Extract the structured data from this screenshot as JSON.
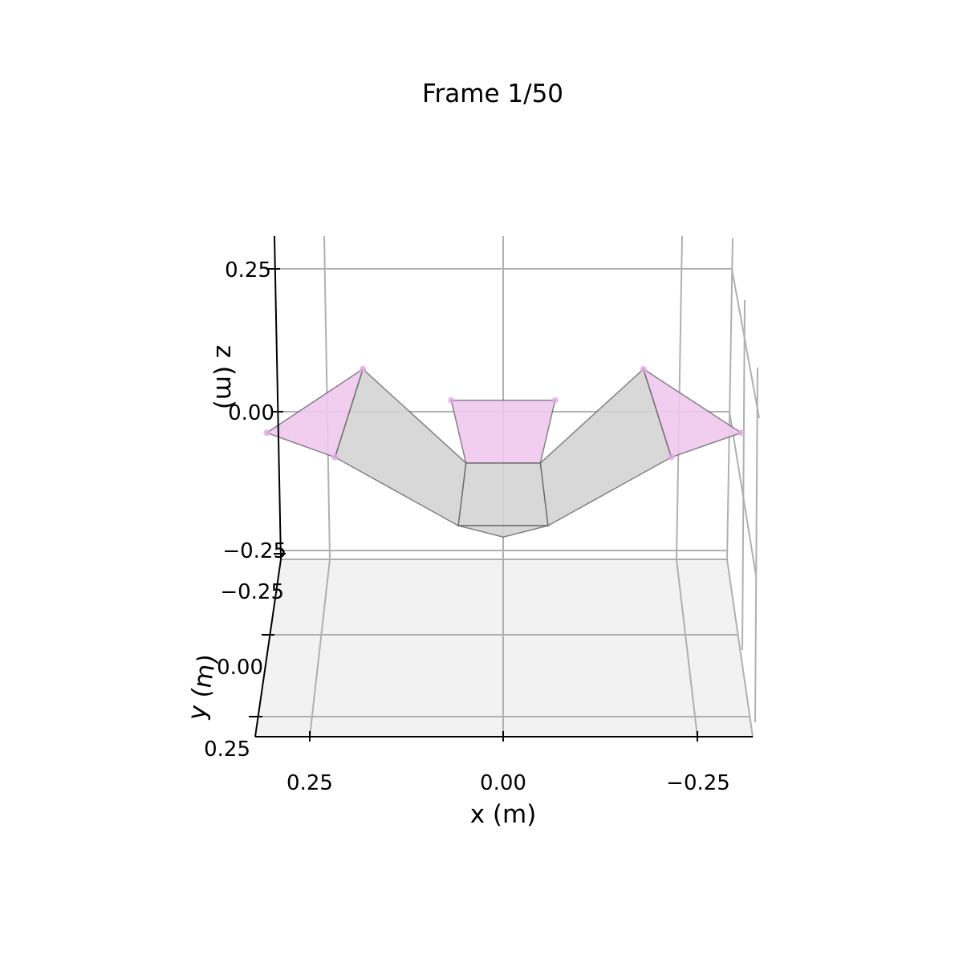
{
  "chart_data": {
    "type": "3d-surface",
    "title": "Frame 1/50",
    "xlabel": "x (m)",
    "ylabel": "y (m)",
    "zlabel": "z (m)",
    "x_ticks": [
      "0.25",
      "0.00",
      "−0.25"
    ],
    "y_ticks": [
      "−0.25",
      "0.00",
      "0.25"
    ],
    "z_ticks": [
      "0.25",
      "0.00",
      "−0.25"
    ],
    "xlim": [
      -0.32,
      0.32
    ],
    "zlim": [
      -0.3,
      0.3
    ],
    "grid": true,
    "colors": {
      "grid": "#b0b0b0",
      "floor": "#f2f2f2",
      "surface_gray": "#d4d4d4",
      "surface_pink": "#f0c8ee",
      "edge": "#555555",
      "marker": "#e6a8e6"
    },
    "polygons": [
      {
        "name": "center-bottom-panel",
        "fill": "gray",
        "points": [
          [
            -0.048,
            -0.09
          ],
          [
            0.048,
            -0.09
          ],
          [
            0.058,
            -0.2
          ],
          [
            -0.058,
            -0.2
          ]
        ]
      },
      {
        "name": "center-bottom-tip",
        "fill": "gray",
        "points": [
          [
            -0.058,
            -0.2
          ],
          [
            0.058,
            -0.2
          ],
          [
            0.0,
            -0.22
          ]
        ]
      },
      {
        "name": "center-top-panel",
        "fill": "pink",
        "points": [
          [
            -0.067,
            0.02
          ],
          [
            0.067,
            0.02
          ],
          [
            0.048,
            -0.09
          ],
          [
            -0.048,
            -0.09
          ]
        ]
      },
      {
        "name": "left-gray-arm",
        "fill": "gray",
        "points": [
          [
            0.048,
            -0.09
          ],
          [
            0.058,
            -0.2
          ],
          [
            0.217,
            -0.08
          ],
          [
            0.181,
            0.075
          ]
        ]
      },
      {
        "name": "right-gray-arm",
        "fill": "gray",
        "points": [
          [
            -0.048,
            -0.09
          ],
          [
            -0.058,
            -0.2
          ],
          [
            -0.217,
            -0.08
          ],
          [
            -0.181,
            0.075
          ]
        ]
      },
      {
        "name": "left-pink-flap",
        "fill": "pink",
        "points": [
          [
            0.181,
            0.075
          ],
          [
            0.217,
            -0.08
          ],
          [
            0.305,
            -0.037
          ]
        ]
      },
      {
        "name": "right-pink-flap",
        "fill": "pink",
        "points": [
          [
            -0.181,
            0.075
          ],
          [
            -0.217,
            -0.08
          ],
          [
            -0.307,
            -0.037
          ]
        ]
      }
    ],
    "markers": [
      [
        0.181,
        0.075
      ],
      [
        0.305,
        -0.037
      ],
      [
        0.217,
        -0.08
      ],
      [
        -0.181,
        0.075
      ],
      [
        -0.307,
        -0.037
      ],
      [
        -0.217,
        -0.08
      ],
      [
        0.067,
        0.02
      ],
      [
        -0.067,
        0.02
      ]
    ]
  }
}
